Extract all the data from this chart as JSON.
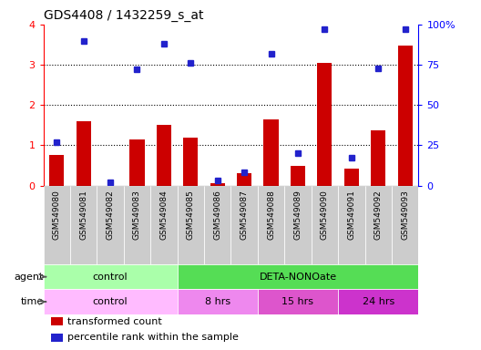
{
  "title": "GDS4408 / 1432259_s_at",
  "samples": [
    "GSM549080",
    "GSM549081",
    "GSM549082",
    "GSM549083",
    "GSM549084",
    "GSM549085",
    "GSM549086",
    "GSM549087",
    "GSM549088",
    "GSM549089",
    "GSM549090",
    "GSM549091",
    "GSM549092",
    "GSM549093"
  ],
  "transformed_count": [
    0.75,
    1.6,
    0.0,
    1.15,
    1.5,
    1.2,
    0.05,
    0.3,
    1.65,
    0.48,
    3.05,
    0.42,
    1.38,
    3.48
  ],
  "percentile_rank": [
    27,
    90,
    2,
    72,
    88,
    76,
    3,
    8,
    82,
    20,
    97,
    17,
    73,
    97
  ],
  "ylim_left": [
    0,
    4
  ],
  "ylim_right": [
    0,
    100
  ],
  "yticks_left": [
    0,
    1,
    2,
    3,
    4
  ],
  "yticks_right": [
    0,
    25,
    50,
    75,
    100
  ],
  "yticklabels_right": [
    "0",
    "25",
    "50",
    "75",
    "100%"
  ],
  "bar_color": "#cc0000",
  "dot_color": "#2222cc",
  "tick_bg_color": "#cccccc",
  "plot_bg": "#ffffff",
  "agent_groups": [
    {
      "label": "control",
      "start": 0,
      "end": 5,
      "color": "#aaffaa"
    },
    {
      "label": "DETA-NONOate",
      "start": 5,
      "end": 14,
      "color": "#55dd55"
    }
  ],
  "time_groups": [
    {
      "label": "control",
      "start": 0,
      "end": 5,
      "color": "#ffbbff"
    },
    {
      "label": "8 hrs",
      "start": 5,
      "end": 8,
      "color": "#ee88ee"
    },
    {
      "label": "15 hrs",
      "start": 8,
      "end": 11,
      "color": "#dd55cc"
    },
    {
      "label": "24 hrs",
      "start": 11,
      "end": 14,
      "color": "#cc33cc"
    }
  ],
  "legend_items": [
    {
      "label": "transformed count",
      "color": "#cc0000"
    },
    {
      "label": "percentile rank within the sample",
      "color": "#2222cc"
    }
  ],
  "agent_label": "agent",
  "time_label": "time"
}
